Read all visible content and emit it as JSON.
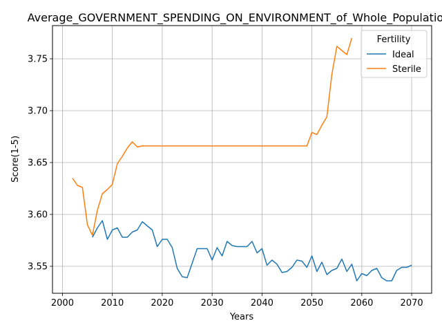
{
  "chart_data": {
    "type": "line",
    "title": "Average_GOVERNMENT_SPENDING_ON_ENVIRONMENT_of_Whole_Population",
    "xlabel": "Years",
    "ylabel": "Score(1-5)",
    "xlim": [
      1998,
      2074
    ],
    "ylim": [
      3.524,
      3.782
    ],
    "xticks": [
      2000,
      2010,
      2020,
      2030,
      2040,
      2050,
      2060,
      2070
    ],
    "yticks": [
      3.55,
      3.6,
      3.65,
      3.7,
      3.75
    ],
    "ytick_labels": [
      "3.55",
      "3.60",
      "3.65",
      "3.70",
      "3.75"
    ],
    "grid": true,
    "legend": {
      "title": "Fertility",
      "placement": "top-right"
    },
    "series": [
      {
        "name": "Ideal",
        "color": "#1f77b4",
        "x": [
          2006,
          2007,
          2008,
          2009,
          2010,
          2011,
          2012,
          2013,
          2014,
          2015,
          2016,
          2017,
          2018,
          2019,
          2020,
          2021,
          2022,
          2023,
          2024,
          2025,
          2026,
          2027,
          2028,
          2029,
          2030,
          2031,
          2032,
          2033,
          2034,
          2035,
          2036,
          2037,
          2038,
          2039,
          2040,
          2041,
          2042,
          2043,
          2044,
          2045,
          2046,
          2047,
          2048,
          2049,
          2050,
          2051,
          2052,
          2053,
          2054,
          2055,
          2056,
          2057,
          2058,
          2059,
          2060,
          2061,
          2062,
          2063,
          2064,
          2065,
          2066,
          2067,
          2068,
          2069,
          2070
        ],
        "y": [
          3.578,
          3.587,
          3.594,
          3.576,
          3.585,
          3.587,
          3.578,
          3.578,
          3.583,
          3.585,
          3.593,
          3.589,
          3.585,
          3.569,
          3.576,
          3.576,
          3.568,
          3.548,
          3.54,
          3.539,
          3.553,
          3.567,
          3.567,
          3.567,
          3.556,
          3.568,
          3.56,
          3.574,
          3.57,
          3.569,
          3.569,
          3.569,
          3.574,
          3.563,
          3.567,
          3.551,
          3.556,
          3.552,
          3.544,
          3.545,
          3.549,
          3.556,
          3.555,
          3.549,
          3.56,
          3.545,
          3.554,
          3.542,
          3.546,
          3.548,
          3.557,
          3.545,
          3.552,
          3.536,
          3.543,
          3.541,
          3.546,
          3.548,
          3.539,
          3.536,
          3.536,
          3.546,
          3.549,
          3.549,
          3.551
        ]
      },
      {
        "name": "Sterile",
        "color": "#ff7f0e",
        "x": [
          2002,
          2003,
          2004,
          2005,
          2006,
          2007,
          2008,
          2009,
          2010,
          2011,
          2012,
          2013,
          2014,
          2015,
          2016,
          2017,
          2018,
          2019,
          2020,
          2021,
          2022,
          2023,
          2024,
          2025,
          2026,
          2027,
          2028,
          2029,
          2030,
          2031,
          2032,
          2033,
          2034,
          2035,
          2036,
          2037,
          2038,
          2039,
          2040,
          2041,
          2042,
          2043,
          2044,
          2045,
          2046,
          2047,
          2048,
          2049,
          2050,
          2051,
          2052,
          2053,
          2054,
          2055,
          2056,
          2057,
          2058
        ],
        "y": [
          3.635,
          3.628,
          3.626,
          3.59,
          3.58,
          3.604,
          3.62,
          3.624,
          3.629,
          3.649,
          3.656,
          3.664,
          3.67,
          3.665,
          3.666,
          3.666,
          3.666,
          3.666,
          3.666,
          3.666,
          3.666,
          3.666,
          3.666,
          3.666,
          3.666,
          3.666,
          3.666,
          3.666,
          3.666,
          3.666,
          3.666,
          3.666,
          3.666,
          3.666,
          3.666,
          3.666,
          3.666,
          3.666,
          3.666,
          3.666,
          3.666,
          3.666,
          3.666,
          3.666,
          3.666,
          3.666,
          3.666,
          3.666,
          3.679,
          3.677,
          3.686,
          3.694,
          3.735,
          3.762,
          3.758,
          3.754,
          3.77
        ]
      }
    ]
  }
}
